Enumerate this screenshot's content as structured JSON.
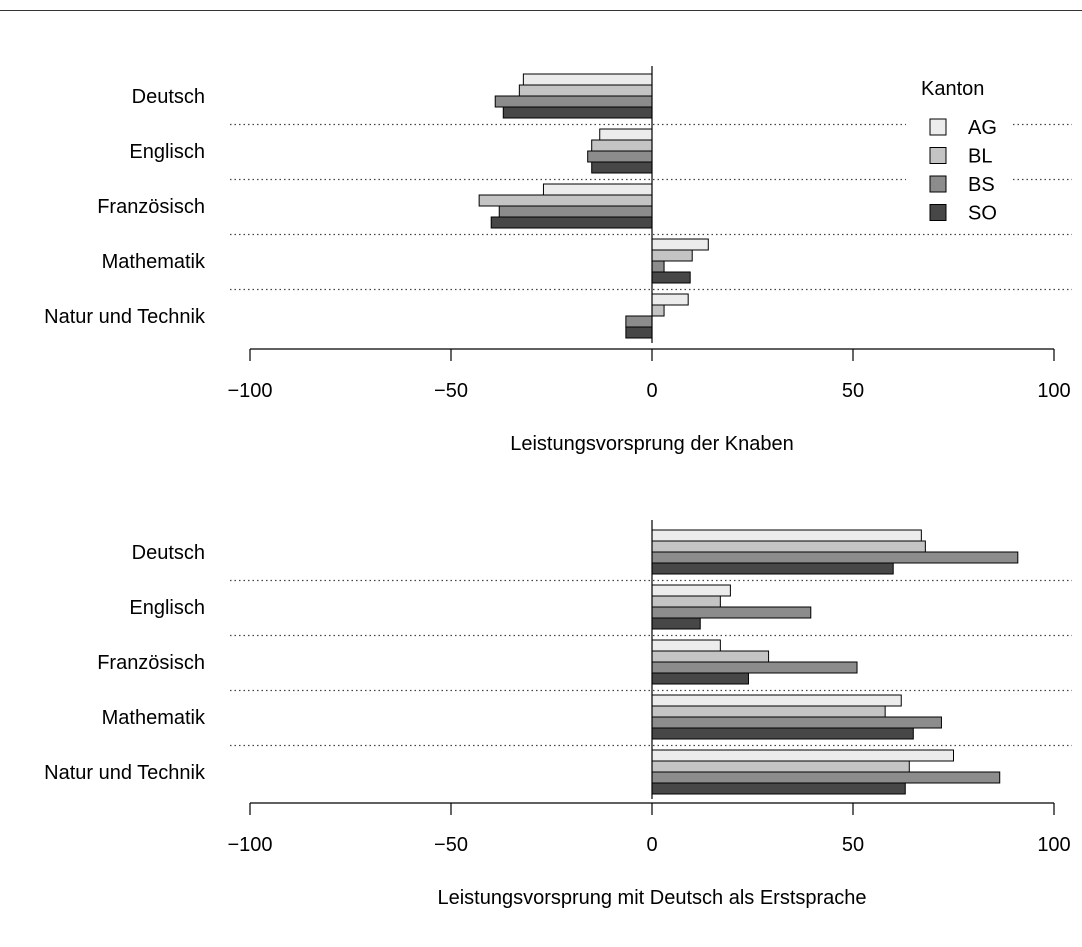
{
  "colors": {
    "AG": "#ececec",
    "BL": "#c4c4c4",
    "BS": "#8c8c8c",
    "SO": "#474747",
    "bar_stroke": "#000000",
    "separator": "#444444"
  },
  "chart_data": [
    {
      "type": "bar",
      "orientation": "horizontal",
      "categories": [
        "Deutsch",
        "Englisch",
        "Französisch",
        "Mathematik",
        "Natur und Technik"
      ],
      "series": [
        {
          "name": "AG",
          "values": [
            -32,
            -13,
            -27,
            14,
            9
          ]
        },
        {
          "name": "BL",
          "values": [
            -33,
            -15,
            -43,
            10,
            3
          ]
        },
        {
          "name": "BS",
          "values": [
            -39,
            -16,
            -38,
            3,
            -6.5
          ]
        },
        {
          "name": "SO",
          "values": [
            -37,
            -15,
            -40,
            9.5,
            -6.5
          ]
        }
      ],
      "xlabel": "Leistungsvorsprung der Knaben",
      "xticks": [
        "−100",
        "−50",
        "0",
        "50",
        "100"
      ],
      "xlim": [
        -100,
        100
      ],
      "legend": {
        "title": "Kanton",
        "position": "top-right"
      }
    },
    {
      "type": "bar",
      "orientation": "horizontal",
      "categories": [
        "Deutsch",
        "Englisch",
        "Französisch",
        "Mathematik",
        "Natur und Technik"
      ],
      "series": [
        {
          "name": "AG",
          "values": [
            67,
            19.5,
            17,
            62,
            75
          ]
        },
        {
          "name": "BL",
          "values": [
            68,
            17,
            29,
            58,
            64
          ]
        },
        {
          "name": "BS",
          "values": [
            91,
            39.5,
            51,
            72,
            86.5
          ]
        },
        {
          "name": "SO",
          "values": [
            60,
            12,
            24,
            65,
            63
          ]
        }
      ],
      "xlabel": "Leistungsvorsprung mit Deutsch als Erstsprache",
      "xticks": [
        "−100",
        "−50",
        "0",
        "50",
        "100"
      ],
      "xlim": [
        -100,
        100
      ]
    }
  ]
}
